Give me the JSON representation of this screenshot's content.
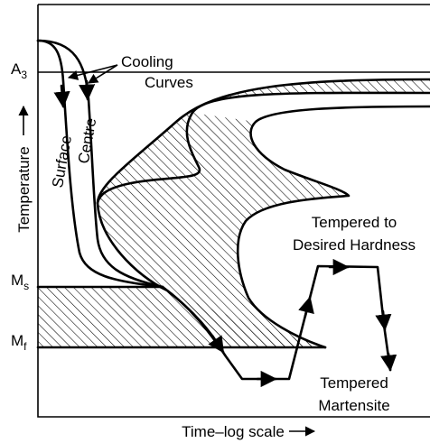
{
  "labels": {
    "a3": {
      "text": "A",
      "sub": "3"
    },
    "ms": {
      "text": "M",
      "sub": "s"
    },
    "mf": {
      "text": "M",
      "sub": "f"
    }
  },
  "y_axis": "Temperature",
  "x_axis": "Time–log scale",
  "cooling_curves": [
    "Cooling",
    "Curves"
  ],
  "surface": "Surface",
  "centre": "Centre",
  "tempered_to": [
    "Tempered to",
    "Desired Hardness"
  ],
  "tempered_martensite": [
    "Tempered",
    "Martensite"
  ]
}
